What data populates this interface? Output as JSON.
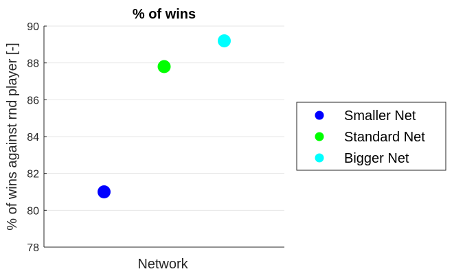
{
  "chart_data": {
    "type": "scatter",
    "title": "% of wins",
    "xlabel": "Network",
    "ylabel": "% of wins against rnd player [-]",
    "ylim": [
      78,
      90
    ],
    "yticks": [
      "78",
      "80",
      "82",
      "84",
      "86",
      "88",
      "90"
    ],
    "grid": true,
    "legend_position": "right",
    "series": [
      {
        "name": "Smaller Net",
        "x": 1,
        "y": 81.0,
        "color": "#0000ff"
      },
      {
        "name": "Standard Net",
        "x": 2,
        "y": 87.8,
        "color": "#00ff00"
      },
      {
        "name": "Bigger Net",
        "x": 3,
        "y": 89.2,
        "color": "#00ffff"
      }
    ],
    "xlim": [
      0,
      4
    ]
  }
}
